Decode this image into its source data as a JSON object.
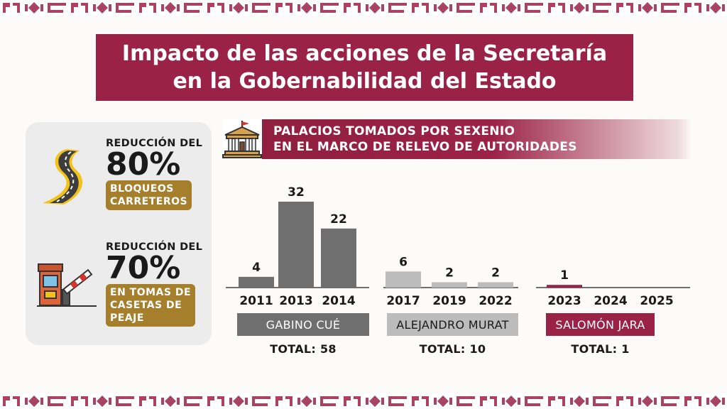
{
  "title": {
    "line1": "Impacto de las acciones de la Secretaría",
    "line2": "en la Gobernabilidad del Estado"
  },
  "stats": [
    {
      "prefix": "REDUCCIÓN DEL",
      "percent": "80%",
      "tag_lines": [
        "BLOQUEOS",
        "CARRETEROS"
      ],
      "icon": "road-icon"
    },
    {
      "prefix": "REDUCCIÓN DEL",
      "percent": "70%",
      "tag_lines": [
        "EN TOMAS DE",
        "CASETAS DE",
        "PEAJE"
      ],
      "icon": "toll-booth-icon"
    }
  ],
  "banner": {
    "line1": "PALACIOS TOMADOS POR SEXENIO",
    "line2": "EN EL MARCO DE RELEVO DE AUTORIDADES",
    "icon": "government-building-icon"
  },
  "colors": {
    "brand": "#9b2247",
    "gold": "#a57f2c",
    "dark_gray": "#6f6f6f",
    "light_gray": "#bcbcbc"
  },
  "chart_data": {
    "type": "bar",
    "title": "PALACIOS TOMADOS POR SEXENIO EN EL MARCO DE RELEVO DE AUTORIDADES",
    "groups": [
      {
        "name": "GABINO CUÉ",
        "total_label": "TOTAL:",
        "total": 58,
        "color": "#6f6f6f",
        "categories": [
          "2011",
          "2013",
          "2014"
        ],
        "values": [
          4,
          32,
          22
        ]
      },
      {
        "name": "ALEJANDRO MURAT",
        "total_label": "TOTAL:",
        "total": 10,
        "color": "#bcbcbc",
        "categories": [
          "2017",
          "2019",
          "2022"
        ],
        "values": [
          6,
          2,
          2
        ]
      },
      {
        "name": "SALOMÓN JARA",
        "total_label": "TOTAL:",
        "total": 1,
        "color": "#9b2247",
        "categories": [
          "2023",
          "2024",
          "2025"
        ],
        "values": [
          1,
          null,
          null
        ]
      }
    ],
    "ylim": [
      0,
      32
    ]
  }
}
